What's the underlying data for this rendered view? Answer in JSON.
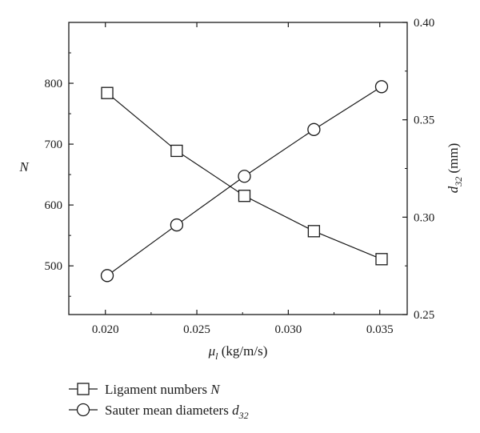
{
  "chart_data": {
    "type": "line",
    "xlabel": {
      "symbol": "μ",
      "sub": "l",
      "unit": " (kg/m/s)"
    },
    "ylabel_left": "N",
    "ylabel_right": {
      "symbol": "d",
      "sub": "32",
      "unit": " (mm)"
    },
    "xlim": [
      0.018,
      0.0365
    ],
    "ylim_left": [
      420,
      900
    ],
    "ylim_right": [
      0.25,
      0.4
    ],
    "x_ticks": [
      "0.020",
      "0.025",
      "0.030",
      "0.035"
    ],
    "x_tick_values": [
      0.02,
      0.025,
      0.03,
      0.035
    ],
    "y_left_ticks": [
      "500",
      "600",
      "700",
      "800"
    ],
    "y_left_tick_values": [
      500,
      600,
      700,
      800
    ],
    "y_right_ticks": [
      "0.25",
      "0.30",
      "0.35",
      "0.40"
    ],
    "y_right_tick_values": [
      0.25,
      0.3,
      0.35,
      0.4
    ],
    "grid": false,
    "legend_position": "bottom-left, below plot",
    "series": [
      {
        "name": "Ligament numbers N",
        "legend": {
          "text": "Ligament numbers ",
          "italic": "N",
          "sub": ""
        },
        "axis": "left",
        "marker": "square",
        "x": [
          0.0201,
          0.0239,
          0.0276,
          0.0314,
          0.0351
        ],
        "y": [
          784,
          689,
          615,
          557,
          511
        ]
      },
      {
        "name": "Sauter mean diameters d32",
        "legend": {
          "text": "Sauter mean diameters ",
          "italic": "d",
          "sub": "32"
        },
        "axis": "right",
        "marker": "circle",
        "x": [
          0.0201,
          0.0239,
          0.0276,
          0.0314,
          0.0351
        ],
        "y": [
          0.27,
          0.296,
          0.321,
          0.345,
          0.367
        ]
      }
    ]
  }
}
